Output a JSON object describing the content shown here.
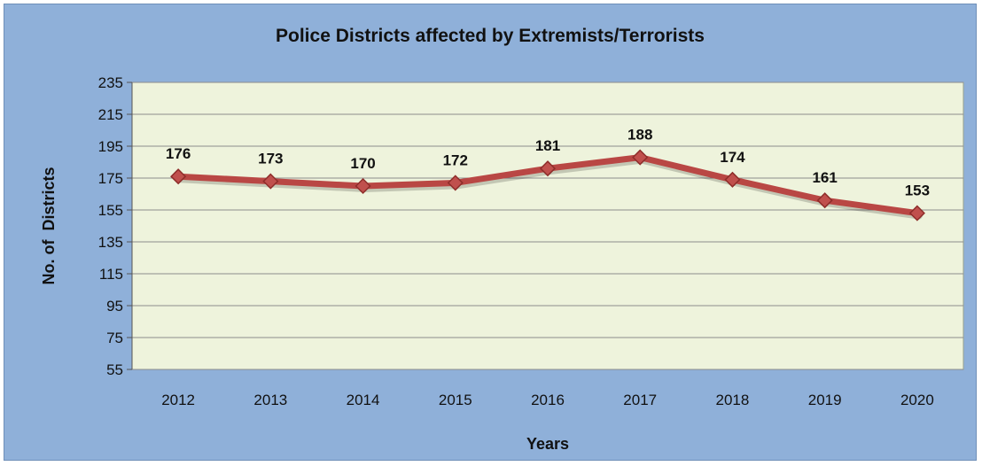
{
  "chart_data": {
    "type": "line",
    "title": "Police Districts affected by Extremists/Terrorists",
    "xlabel": "Years",
    "ylabel": "No. of  Districts",
    "categories": [
      "2012",
      "2013",
      "2014",
      "2015",
      "2016",
      "2017",
      "2018",
      "2019",
      "2020"
    ],
    "series": [
      {
        "values": [
          176,
          173,
          170,
          172,
          181,
          188,
          174,
          161,
          153
        ]
      }
    ],
    "ylim": [
      55,
      235
    ],
    "yticks": [
      55,
      75,
      95,
      115,
      135,
      155,
      175,
      195,
      215,
      235
    ],
    "grid": true,
    "legend": "none",
    "colors": {
      "frame_background": "#8fb0d9",
      "plot_background": "#eef3dc",
      "line": "#b94744",
      "marker": "#c0504d",
      "gridline": "#8c8c8c"
    }
  }
}
